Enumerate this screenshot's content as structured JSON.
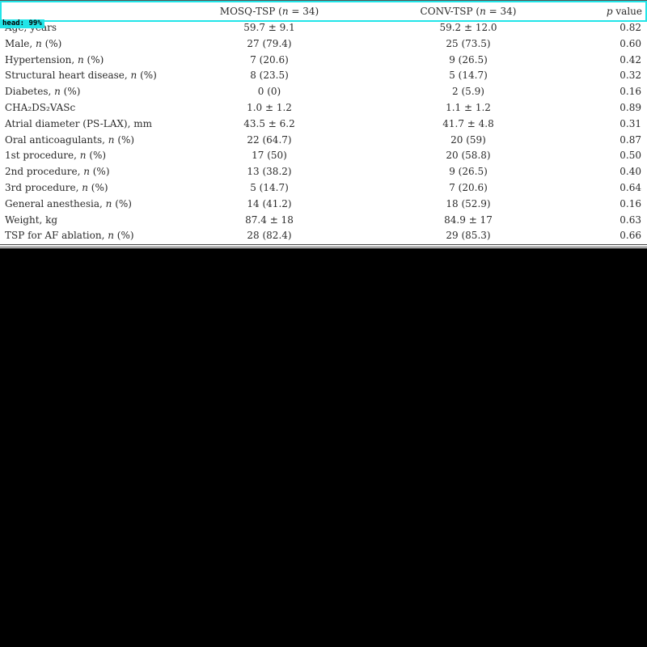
{
  "table": {
    "header": {
      "mosq": "MOSQ-TSP (n = 34)",
      "conv": "CONV-TSP (n = 34)",
      "pval": "p value"
    },
    "rows": [
      {
        "label": "Age, years",
        "mosq": "59.7 ± 9.1",
        "conv": "59.2 ± 12.0",
        "pval": "0.82"
      },
      {
        "label": "Male, n (%)",
        "mosq": "27 (79.4)",
        "conv": "25 (73.5)",
        "pval": "0.60"
      },
      {
        "label": "Hypertension, n (%)",
        "mosq": "7 (20.6)",
        "conv": "9 (26.5)",
        "pval": "0.42"
      },
      {
        "label": "Structural heart disease, n (%)",
        "mosq": "8 (23.5)",
        "conv": "5 (14.7)",
        "pval": "0.32"
      },
      {
        "label": "Diabetes, n (%)",
        "mosq": "0 (0)",
        "conv": "2 (5.9)",
        "pval": "0.16"
      },
      {
        "label": "CHA₂DS₂VASc",
        "mosq": "1.0 ± 1.2",
        "conv": "1.1 ± 1.2",
        "pval": "0.89"
      },
      {
        "label": "Atrial diameter (PS-LAX), mm",
        "mosq": "43.5 ± 6.2",
        "conv": "41.7 ± 4.8",
        "pval": "0.31"
      },
      {
        "label": "Oral anticoagulants, n (%)",
        "mosq": "22 (64.7)",
        "conv": "20 (59)",
        "pval": "0.87"
      },
      {
        "label": "1st procedure, n (%)",
        "mosq": "17 (50)",
        "conv": "20 (58.8)",
        "pval": "0.50"
      },
      {
        "label": "2nd procedure, n (%)",
        "mosq": "13 (38.2)",
        "conv": "9 (26.5)",
        "pval": "0.40"
      },
      {
        "label": "3rd procedure, n (%)",
        "mosq": "5 (14.7)",
        "conv": "7 (20.6)",
        "pval": "0.64"
      },
      {
        "label": "General anesthesia, n (%)",
        "mosq": "14 (41.2)",
        "conv": "18 (52.9)",
        "pval": "0.16"
      },
      {
        "label": "Weight, kg",
        "mosq": "87.4 ± 18",
        "conv": "84.9 ± 17",
        "pval": "0.63"
      },
      {
        "label": "TSP for AF ablation, n (%)",
        "mosq": "28 (82.4)",
        "conv": "29 (85.3)",
        "pval": "0.66"
      }
    ]
  },
  "detection": {
    "tag": "head: 99%",
    "color": "#22e5e8"
  },
  "colors": {
    "background": "#000000",
    "panel": "#ffffff",
    "text": "#2a2a2a"
  }
}
